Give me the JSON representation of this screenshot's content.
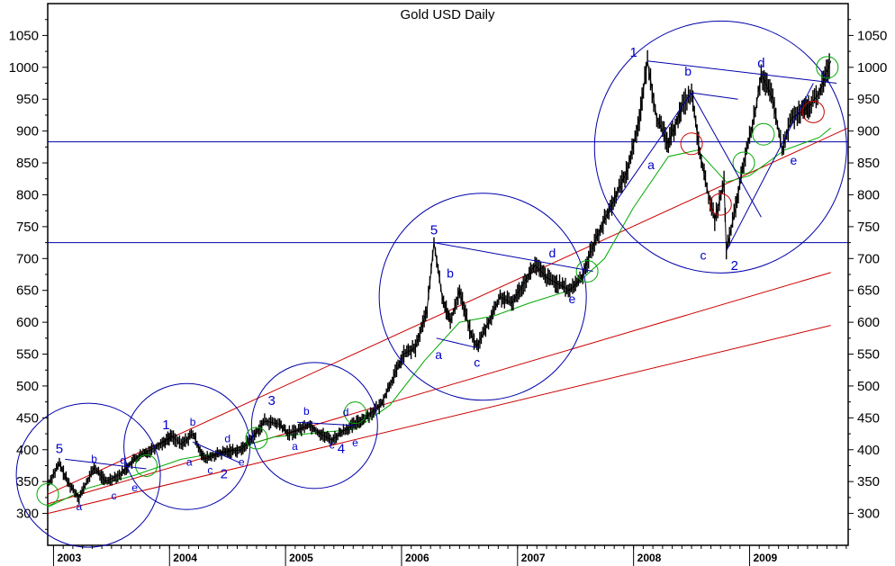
{
  "chart_data": {
    "type": "line",
    "title": "Gold USD Daily",
    "ylim": [
      250,
      1100
    ],
    "y_ticks": [
      300,
      350,
      400,
      450,
      500,
      550,
      600,
      650,
      700,
      750,
      800,
      850,
      900,
      950,
      1000,
      1050
    ],
    "y_tick_labels": [
      "300",
      "350",
      "400",
      "450",
      "500",
      "550",
      "600",
      "650",
      "700",
      "750",
      "800",
      "850",
      "900",
      "950",
      "1000",
      "1050"
    ],
    "x_range": [
      2002.95,
      2009.85
    ],
    "x_ticks": [
      2003,
      2004,
      2005,
      2006,
      2007,
      2008,
      2009
    ],
    "x_tick_labels": [
      "2003",
      "2004",
      "2005",
      "2006",
      "2007",
      "2008",
      "2009"
    ],
    "grid": false,
    "colors": {
      "price": "#000000",
      "trend_lines": "#cc0000",
      "ma": "#00aa00",
      "wave_lines": "#0000aa",
      "wave_labels": "#0000cc",
      "frame": "#000000"
    },
    "price_points": [
      [
        2002.95,
        345
      ],
      [
        2003.05,
        378
      ],
      [
        2003.12,
        350
      ],
      [
        2003.22,
        325
      ],
      [
        2003.35,
        372
      ],
      [
        2003.45,
        350
      ],
      [
        2003.58,
        362
      ],
      [
        2003.7,
        385
      ],
      [
        2003.82,
        398
      ],
      [
        2003.95,
        412
      ],
      [
        2004.02,
        422
      ],
      [
        2004.1,
        408
      ],
      [
        2004.2,
        425
      ],
      [
        2004.3,
        385
      ],
      [
        2004.4,
        392
      ],
      [
        2004.52,
        398
      ],
      [
        2004.62,
        400
      ],
      [
        2004.72,
        420
      ],
      [
        2004.82,
        445
      ],
      [
        2004.95,
        440
      ],
      [
        2005.02,
        425
      ],
      [
        2005.1,
        430
      ],
      [
        2005.2,
        440
      ],
      [
        2005.3,
        425
      ],
      [
        2005.4,
        415
      ],
      [
        2005.5,
        430
      ],
      [
        2005.6,
        440
      ],
      [
        2005.72,
        455
      ],
      [
        2005.82,
        470
      ],
      [
        2005.92,
        510
      ],
      [
        2006.02,
        550
      ],
      [
        2006.12,
        560
      ],
      [
        2006.22,
        620
      ],
      [
        2006.28,
        725
      ],
      [
        2006.35,
        640
      ],
      [
        2006.42,
        600
      ],
      [
        2006.5,
        650
      ],
      [
        2006.6,
        580
      ],
      [
        2006.65,
        562
      ],
      [
        2006.75,
        600
      ],
      [
        2006.85,
        640
      ],
      [
        2006.95,
        630
      ],
      [
        2007.05,
        660
      ],
      [
        2007.15,
        690
      ],
      [
        2007.25,
        670
      ],
      [
        2007.35,
        660
      ],
      [
        2007.45,
        650
      ],
      [
        2007.55,
        670
      ],
      [
        2007.65,
        720
      ],
      [
        2007.75,
        760
      ],
      [
        2007.85,
        800
      ],
      [
        2007.95,
        840
      ],
      [
        2008.05,
        920
      ],
      [
        2008.12,
        1010
      ],
      [
        2008.2,
        920
      ],
      [
        2008.3,
        880
      ],
      [
        2008.42,
        940
      ],
      [
        2008.5,
        960
      ],
      [
        2008.56,
        880
      ],
      [
        2008.62,
        820
      ],
      [
        2008.7,
        760
      ],
      [
        2008.78,
        820
      ],
      [
        2008.8,
        712
      ],
      [
        2008.88,
        780
      ],
      [
        2008.95,
        850
      ],
      [
        2009.05,
        930
      ],
      [
        2009.1,
        990
      ],
      [
        2009.2,
        950
      ],
      [
        2009.28,
        870
      ],
      [
        2009.36,
        920
      ],
      [
        2009.45,
        930
      ],
      [
        2009.52,
        940
      ],
      [
        2009.6,
        960
      ],
      [
        2009.7,
        1010
      ]
    ],
    "ma_points": [
      [
        2002.95,
        310
      ],
      [
        2003.3,
        340
      ],
      [
        2003.7,
        360
      ],
      [
        2004.1,
        385
      ],
      [
        2004.5,
        398
      ],
      [
        2004.9,
        420
      ],
      [
        2005.3,
        427
      ],
      [
        2005.6,
        432
      ],
      [
        2005.9,
        470
      ],
      [
        2006.2,
        540
      ],
      [
        2006.5,
        600
      ],
      [
        2006.8,
        610
      ],
      [
        2007.1,
        630
      ],
      [
        2007.45,
        650
      ],
      [
        2007.75,
        700
      ],
      [
        2008.0,
        780
      ],
      [
        2008.3,
        860
      ],
      [
        2008.55,
        870
      ],
      [
        2008.8,
        820
      ],
      [
        2009.0,
        830
      ],
      [
        2009.3,
        870
      ],
      [
        2009.6,
        890
      ],
      [
        2009.7,
        905
      ]
    ],
    "trend_lines": [
      {
        "from": [
          2002.95,
          330
        ],
        "to": [
          2009.85,
          905
        ]
      },
      {
        "from": [
          2002.95,
          315
        ],
        "to": [
          2009.7,
          678
        ]
      },
      {
        "from": [
          2002.95,
          300
        ],
        "to": [
          2009.7,
          595
        ]
      }
    ],
    "horizontal_lines": [
      883,
      725
    ],
    "wave_lines": [
      {
        "from": [
          2006.28,
          725
        ],
        "to": [
          2007.65,
          680
        ]
      },
      {
        "from": [
          2006.3,
          575
        ],
        "to": [
          2006.65,
          560
        ]
      },
      {
        "from": [
          2008.12,
          1010
        ],
        "to": [
          2009.75,
          975
        ]
      },
      {
        "from": [
          2007.85,
          790
        ],
        "to": [
          2008.5,
          960
        ]
      },
      {
        "from": [
          2008.5,
          960
        ],
        "to": [
          2008.9,
          950
        ]
      },
      {
        "from": [
          2008.5,
          960
        ],
        "to": [
          2009.1,
          765
        ]
      },
      {
        "from": [
          2008.8,
          712
        ],
        "to": [
          2009.55,
          975
        ]
      },
      {
        "from": [
          2003.1,
          385
        ],
        "to": [
          2003.8,
          370
        ]
      },
      {
        "from": [
          2004.2,
          412
        ],
        "to": [
          2004.6,
          380
        ]
      },
      {
        "from": [
          2005.1,
          443
        ],
        "to": [
          2005.6,
          438
        ]
      }
    ],
    "big_circles": [
      {
        "cx": 2003.3,
        "cy": 360,
        "r_px": 80
      },
      {
        "cx": 2004.15,
        "cy": 405,
        "r_px": 70
      },
      {
        "cx": 2005.25,
        "cy": 438,
        "r_px": 70
      },
      {
        "cx": 2006.7,
        "cy": 640,
        "r_px": 115
      },
      {
        "cx": 2008.75,
        "cy": 875,
        "r_px": 140
      }
    ],
    "small_circles": [
      {
        "cx": 2002.95,
        "cy": 330,
        "color": "#00aa00"
      },
      {
        "cx": 2003.8,
        "cy": 375,
        "color": "#00aa00"
      },
      {
        "cx": 2004.75,
        "cy": 418,
        "color": "#00aa00"
      },
      {
        "cx": 2005.6,
        "cy": 458,
        "color": "#00aa00"
      },
      {
        "cx": 2007.6,
        "cy": 680,
        "color": "#00aa00"
      },
      {
        "cx": 2008.5,
        "cy": 880,
        "color": "#cc0000"
      },
      {
        "cx": 2008.75,
        "cy": 785,
        "color": "#cc0000"
      },
      {
        "cx": 2008.95,
        "cy": 850,
        "color": "#00aa00"
      },
      {
        "cx": 2009.12,
        "cy": 895,
        "color": "#00aa00"
      },
      {
        "cx": 2009.55,
        "cy": 930,
        "color": "#cc0000"
      },
      {
        "cx": 2009.67,
        "cy": 1000,
        "color": "#00aa00"
      }
    ],
    "annotations": [
      {
        "text": "5",
        "x": 2003.05,
        "y": 395,
        "size": 15
      },
      {
        "text": "a",
        "x": 2003.22,
        "y": 305,
        "size": 12
      },
      {
        "text": "b",
        "x": 2003.35,
        "y": 380,
        "size": 12
      },
      {
        "text": "c",
        "x": 2003.52,
        "y": 322,
        "size": 12
      },
      {
        "text": "d",
        "x": 2003.6,
        "y": 378,
        "size": 12
      },
      {
        "text": "e",
        "x": 2003.7,
        "y": 335,
        "size": 12
      },
      {
        "text": "1",
        "x": 2003.97,
        "y": 432,
        "size": 15
      },
      {
        "text": "a",
        "x": 2004.17,
        "y": 375,
        "size": 12
      },
      {
        "text": "b",
        "x": 2004.2,
        "y": 438,
        "size": 12
      },
      {
        "text": "c",
        "x": 2004.35,
        "y": 362,
        "size": 12
      },
      {
        "text": "d",
        "x": 2004.5,
        "y": 412,
        "size": 12
      },
      {
        "text": "2",
        "x": 2004.47,
        "y": 355,
        "size": 15
      },
      {
        "text": "e",
        "x": 2004.62,
        "y": 375,
        "size": 12
      },
      {
        "text": "3",
        "x": 2004.88,
        "y": 470,
        "size": 15
      },
      {
        "text": "b",
        "x": 2005.18,
        "y": 455,
        "size": 12
      },
      {
        "text": "a",
        "x": 2005.08,
        "y": 400,
        "size": 12
      },
      {
        "text": "c",
        "x": 2005.4,
        "y": 402,
        "size": 12
      },
      {
        "text": "d",
        "x": 2005.52,
        "y": 453,
        "size": 12
      },
      {
        "text": "4",
        "x": 2005.48,
        "y": 395,
        "size": 15
      },
      {
        "text": "e",
        "x": 2005.6,
        "y": 405,
        "size": 12
      },
      {
        "text": "5",
        "x": 2006.28,
        "y": 738,
        "size": 15
      },
      {
        "text": "b",
        "x": 2006.42,
        "y": 670,
        "size": 14
      },
      {
        "text": "a",
        "x": 2006.32,
        "y": 542,
        "size": 14
      },
      {
        "text": "c",
        "x": 2006.65,
        "y": 530,
        "size": 14
      },
      {
        "text": "d",
        "x": 2007.3,
        "y": 702,
        "size": 14
      },
      {
        "text": "e",
        "x": 2007.47,
        "y": 630,
        "size": 14
      },
      {
        "text": "1",
        "x": 2008.0,
        "y": 1017,
        "size": 15
      },
      {
        "text": "a",
        "x": 2008.15,
        "y": 840,
        "size": 14
      },
      {
        "text": "b",
        "x": 2008.47,
        "y": 987,
        "size": 14
      },
      {
        "text": "c",
        "x": 2008.6,
        "y": 698,
        "size": 14
      },
      {
        "text": "2",
        "x": 2008.87,
        "y": 682,
        "size": 15
      },
      {
        "text": "d",
        "x": 2009.1,
        "y": 1000,
        "size": 15
      },
      {
        "text": "e",
        "x": 2009.38,
        "y": 847,
        "size": 14
      }
    ]
  }
}
